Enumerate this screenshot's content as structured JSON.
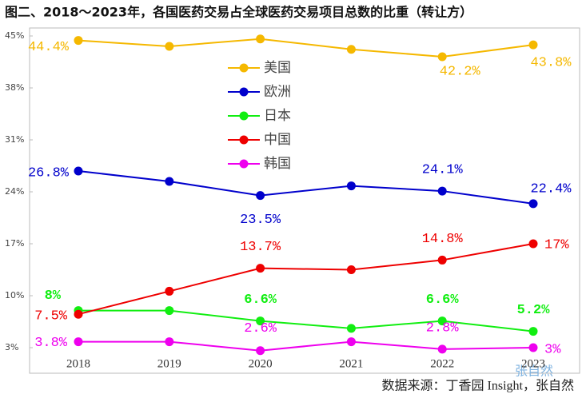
{
  "chart_data": {
    "type": "line",
    "title": "图二、2018～2023年，各国医药交易占全球医药交易项目总数的比重（转让方）",
    "categories": [
      "2018",
      "2019",
      "2020",
      "2021",
      "2022",
      "2023"
    ],
    "ylim": [
      3,
      45
    ],
    "yticks": [
      {
        "value": 3,
        "label": "3%"
      },
      {
        "value": 10,
        "label": "10%"
      },
      {
        "value": 17,
        "label": "17%"
      },
      {
        "value": 24,
        "label": "24%"
      },
      {
        "value": 31,
        "label": "31%"
      },
      {
        "value": 38,
        "label": "38%"
      },
      {
        "value": 45,
        "label": "45%"
      }
    ],
    "series": [
      {
        "name": "美国",
        "color": "#f5b800",
        "values": [
          44.4,
          43.6,
          44.6,
          43.2,
          42.2,
          43.8
        ],
        "value_labels": [
          "44.4%",
          null,
          null,
          null,
          "42.2%",
          "43.8%"
        ]
      },
      {
        "name": "欧洲",
        "color": "#0000cc",
        "values": [
          26.8,
          25.4,
          23.5,
          24.8,
          24.1,
          22.4
        ],
        "value_labels": [
          "26.8%",
          null,
          "23.5%",
          null,
          "24.1%",
          "22.4%"
        ]
      },
      {
        "name": "日本",
        "color": "#11ee11",
        "values": [
          8,
          8,
          6.6,
          5.6,
          6.6,
          5.2
        ],
        "value_labels": [
          "8%",
          null,
          "6.6%",
          null,
          "6.6%",
          "5.2%"
        ]
      },
      {
        "name": "中国",
        "color": "#ee0000",
        "values": [
          7.5,
          10.6,
          13.7,
          13.5,
          14.8,
          17
        ],
        "value_labels": [
          "7.5%",
          null,
          "13.7%",
          null,
          "14.8%",
          "17%"
        ]
      },
      {
        "name": "韩国",
        "color": "#ee00ee",
        "values": [
          3.8,
          3.8,
          2.6,
          3.8,
          2.8,
          3
        ],
        "value_labels": [
          "3.8%",
          null,
          "2.6%",
          null,
          "2.8%",
          "3%"
        ]
      }
    ],
    "source": "数据来源：丁香园 Insight，张自然",
    "watermark": "张自然"
  }
}
